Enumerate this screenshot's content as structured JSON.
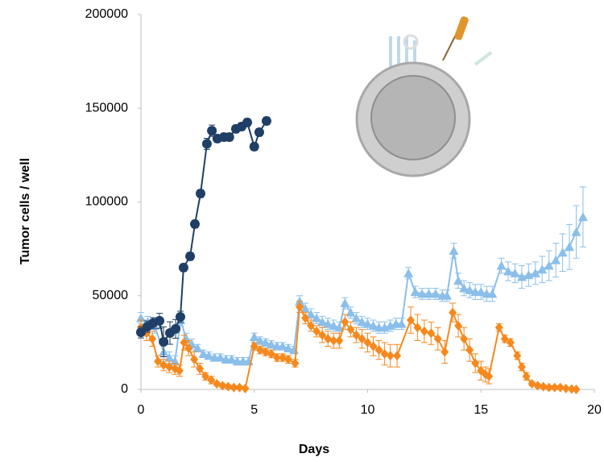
{
  "chart_data": {
    "type": "line",
    "x_label": "Days",
    "y_label": "Tumor cells / well",
    "xlim": [
      0,
      20
    ],
    "xticks": [
      0,
      5,
      10,
      15,
      20
    ],
    "ylim": [
      0,
      200000
    ],
    "yticks": [
      0,
      50000,
      100000,
      150000,
      200000
    ],
    "grid": false,
    "series": [
      {
        "color": "#8bbfea",
        "marker": "triangle",
        "x": [
          0,
          0.3,
          0.6,
          1.0,
          1.25,
          1.5,
          1.75,
          2.0,
          2.25,
          2.5,
          2.75,
          3.0,
          3.25,
          3.5,
          3.75,
          4.0,
          4.25,
          4.5,
          4.75,
          5.0,
          5.25,
          5.5,
          5.75,
          6.0,
          6.25,
          6.5,
          6.75,
          7.0,
          7.25,
          7.5,
          7.75,
          8.0,
          8.25,
          8.5,
          8.75,
          9.0,
          9.25,
          9.5,
          9.75,
          10.0,
          10.25,
          10.5,
          10.75,
          11.0,
          11.25,
          11.5,
          11.8,
          12.1,
          12.4,
          12.7,
          13.0,
          13.3,
          13.5,
          13.8,
          14.0,
          14.25,
          14.5,
          14.75,
          15.0,
          15.25,
          15.5,
          15.9,
          16.2,
          16.5,
          16.8,
          17.1,
          17.4,
          17.7,
          18.0,
          18.3,
          18.6,
          18.9,
          19.2,
          19.5
        ],
        "values": [
          38000,
          36000,
          34000,
          20000,
          17000,
          15000,
          37000,
          27000,
          24000,
          22000,
          19000,
          18000,
          17000,
          17000,
          16000,
          16000,
          15000,
          15000,
          15000,
          28000,
          26000,
          25000,
          24000,
          23000,
          23000,
          22000,
          21000,
          47000,
          43000,
          40000,
          38000,
          36000,
          35000,
          34000,
          33000,
          46000,
          41000,
          38000,
          36000,
          35000,
          34000,
          33000,
          33000,
          34000,
          35000,
          35000,
          62000,
          52000,
          51000,
          51000,
          51000,
          50000,
          50000,
          74000,
          58000,
          54000,
          53000,
          52000,
          52000,
          51000,
          51000,
          66000,
          63000,
          62000,
          60000,
          61000,
          62000,
          64000,
          66000,
          69000,
          73000,
          76000,
          84000,
          92000
        ],
        "errors": [
          3000,
          3000,
          4000,
          4000,
          3000,
          3000,
          3000,
          3000,
          3000,
          2000,
          2000,
          2000,
          2000,
          2000,
          2000,
          2000,
          2000,
          2000,
          2000,
          2000,
          2000,
          2000,
          2000,
          2000,
          2000,
          2000,
          2000,
          3000,
          3000,
          3000,
          3000,
          3000,
          3000,
          3000,
          3000,
          3000,
          3000,
          3000,
          3000,
          3000,
          3000,
          3000,
          3000,
          3000,
          3000,
          3000,
          3000,
          3000,
          3000,
          3000,
          3000,
          3000,
          3000,
          4000,
          4000,
          4000,
          4000,
          4000,
          4000,
          4000,
          4000,
          4000,
          5000,
          5000,
          6000,
          6000,
          6000,
          7000,
          8000,
          9000,
          10000,
          12000,
          14000,
          16000
        ]
      },
      {
        "color": "#f5891e",
        "marker": "diamond",
        "x": [
          0,
          0.25,
          0.5,
          0.75,
          1.0,
          1.25,
          1.5,
          1.7,
          1.9,
          2.1,
          2.35,
          2.6,
          2.85,
          3.1,
          3.35,
          3.6,
          3.85,
          4.1,
          4.35,
          4.6,
          5.0,
          5.25,
          5.5,
          5.75,
          6.0,
          6.25,
          6.5,
          6.8,
          7.0,
          7.25,
          7.5,
          7.75,
          8.0,
          8.25,
          8.5,
          8.75,
          9.0,
          9.25,
          9.5,
          9.75,
          10.0,
          10.25,
          10.5,
          10.75,
          11.0,
          11.3,
          11.9,
          12.2,
          12.5,
          12.8,
          13.1,
          13.4,
          13.75,
          14.0,
          14.25,
          14.5,
          14.75,
          15.0,
          15.2,
          15.35,
          15.8,
          16.05,
          16.3,
          16.6,
          16.8,
          17.0,
          17.25,
          17.5,
          17.75,
          18.0,
          18.25,
          18.5,
          18.75,
          19.0,
          19.2
        ],
        "values": [
          33000,
          30000,
          27000,
          15000,
          13000,
          12000,
          11000,
          10000,
          25000,
          22000,
          16000,
          11000,
          7000,
          5000,
          3000,
          2000,
          1500,
          1000,
          1000,
          500,
          23000,
          21000,
          20000,
          19000,
          17000,
          17000,
          16000,
          14000,
          44000,
          38000,
          34000,
          31000,
          29000,
          27000,
          26000,
          26000,
          36000,
          32000,
          29000,
          27000,
          25000,
          23000,
          21000,
          19000,
          18000,
          18000,
          37000,
          33000,
          31000,
          30000,
          27000,
          20000,
          41000,
          34000,
          27000,
          21000,
          14000,
          10000,
          8000,
          7000,
          33000,
          27000,
          25000,
          18000,
          12000,
          7000,
          3000,
          2000,
          1500,
          1000,
          1000,
          1000,
          500,
          200,
          0
        ],
        "errors": [
          4000,
          4000,
          4000,
          3000,
          3000,
          3000,
          3000,
          3000,
          4000,
          4000,
          4000,
          3000,
          2000,
          2000,
          1000,
          1000,
          1000,
          1000,
          1000,
          500,
          2000,
          2000,
          2000,
          2000,
          2000,
          2000,
          2000,
          2000,
          3000,
          3000,
          3000,
          3000,
          4000,
          4000,
          4000,
          4000,
          4000,
          4000,
          4000,
          5000,
          5000,
          5000,
          5000,
          6000,
          6000,
          6000,
          7000,
          7000,
          6000,
          6000,
          6000,
          6000,
          5000,
          6000,
          6000,
          6000,
          5000,
          5000,
          4000,
          4000,
          2000,
          2000,
          2000,
          2000,
          2000,
          2000,
          1000,
          1000,
          1000,
          1000,
          1000,
          1000,
          500,
          200,
          0
        ]
      },
      {
        "color": "#1f3f66",
        "marker": "circle",
        "x": [
          0,
          0.28,
          0.53,
          0.82,
          1.0,
          1.28,
          1.53,
          1.74,
          1.88,
          2.17,
          2.38,
          2.63,
          2.91,
          3.13,
          3.37,
          3.66,
          3.9,
          4.19,
          4.44,
          4.69,
          5.0,
          5.22,
          5.54
        ],
        "values": [
          30500,
          33500,
          35300,
          36600,
          25400,
          30100,
          32300,
          38700,
          65000,
          71000,
          88200,
          104500,
          131000,
          138000,
          133800,
          134600,
          134600,
          139000,
          140200,
          142400,
          129500,
          137200,
          143200
        ],
        "errors": [
          3000,
          3000,
          3000,
          4000,
          8000,
          6000,
          5000,
          3000,
          2000,
          2000,
          2000,
          2000,
          3000,
          3000,
          2000,
          2000,
          2000,
          2000,
          2000,
          2000,
          2000,
          2000,
          2000
        ]
      }
    ]
  }
}
